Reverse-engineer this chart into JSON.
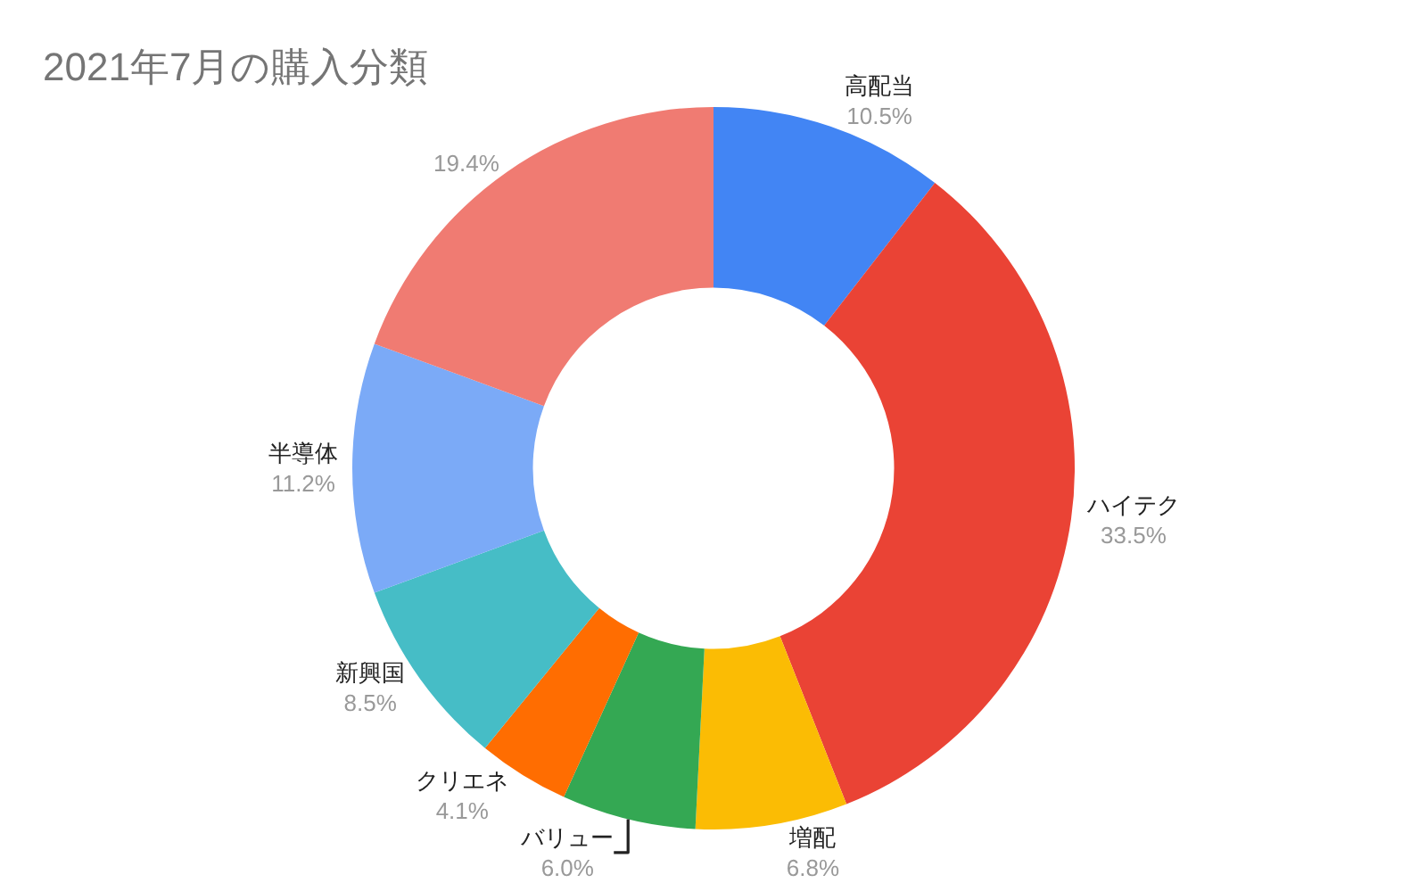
{
  "chart_data": {
    "type": "donut",
    "title": "2021年7月の購入分類",
    "categories": [
      "高配当",
      "ハイテク",
      "増配",
      "バリュー",
      "クリエネ",
      "新興国",
      "半導体",
      null
    ],
    "values": [
      10.5,
      33.5,
      6.8,
      6.0,
      4.1,
      8.5,
      11.2,
      19.4
    ],
    "value_labels": [
      "10.5%",
      "33.5%",
      "6.8%",
      "6.0%",
      "4.1%",
      "8.5%",
      "11.2%",
      "19.4%"
    ],
    "colors": [
      "#4285f4",
      "#ea4335",
      "#fbbc04",
      "#34a853",
      "#ff6d01",
      "#46bdc6",
      "#7baaf7",
      "#f07b72"
    ],
    "legend": false
  }
}
